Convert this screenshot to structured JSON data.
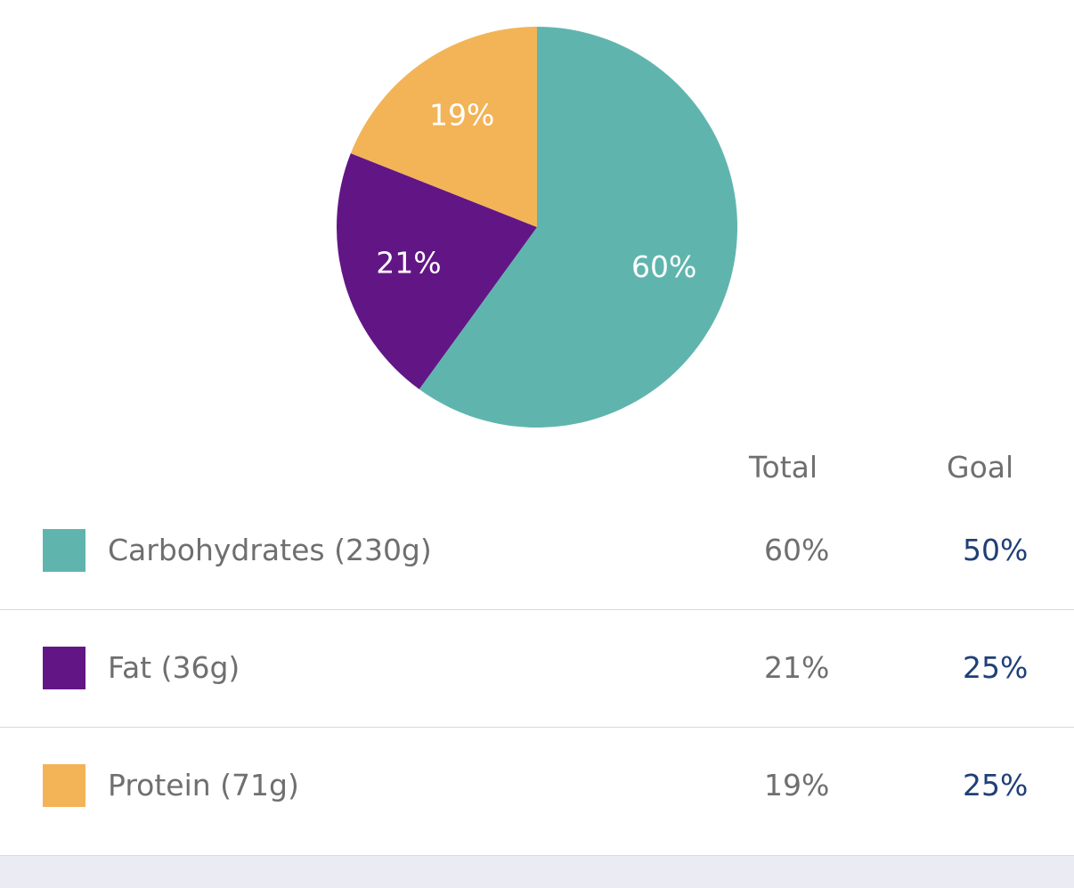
{
  "chart_data": {
    "type": "pie",
    "title": "",
    "slices": [
      {
        "name": "Carbohydrates",
        "value": 60,
        "label": "60%",
        "color": "#5fb5ae"
      },
      {
        "name": "Fat",
        "value": 21,
        "label": "21%",
        "color": "#621685"
      },
      {
        "name": "Protein",
        "value": 19,
        "label": "19%",
        "color": "#f2b457"
      }
    ],
    "start_angle_deg": 0,
    "direction": "clockwise",
    "legend": "below"
  },
  "table": {
    "headers": {
      "total": "Total",
      "goal": "Goal"
    },
    "rows": [
      {
        "label": "Carbohydrates (230g)",
        "total": "60%",
        "goal": "50%",
        "color": "#5fb5ae"
      },
      {
        "label": "Fat (36g)",
        "total": "21%",
        "goal": "25%",
        "color": "#621685"
      },
      {
        "label": "Protein (71g)",
        "total": "19%",
        "goal": "25%",
        "color": "#f2b457"
      }
    ]
  },
  "colors": {
    "text_gray": "#6f6f6f",
    "goal_blue": "#1f3f77",
    "divider": "#d9d9de",
    "bottom_band": "#ebebf4"
  }
}
